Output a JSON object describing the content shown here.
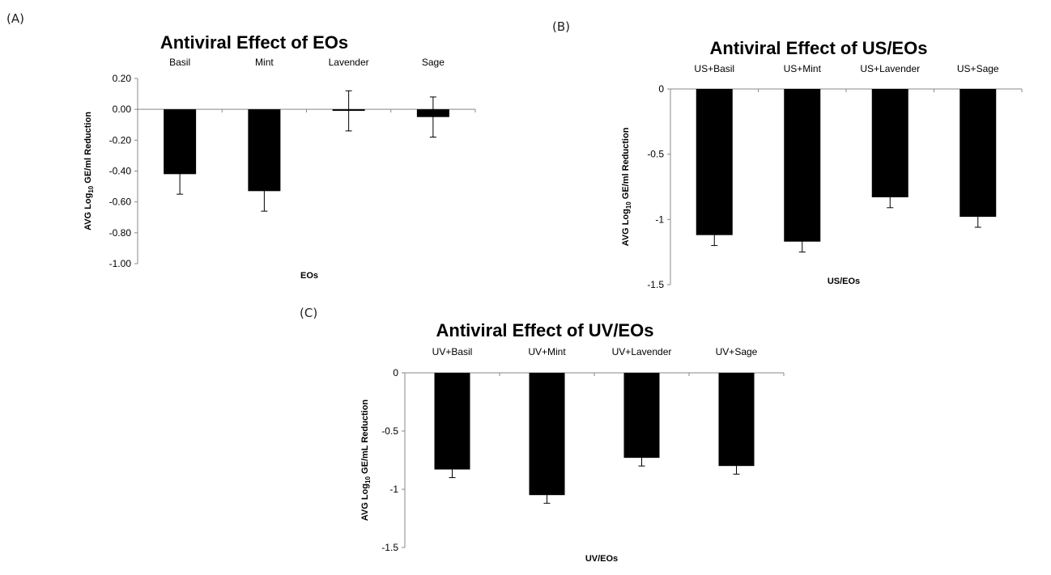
{
  "panels": [
    {
      "label": "(A)"
    },
    {
      "label": "(B)"
    },
    {
      "label": "(C)"
    }
  ],
  "chart_data": [
    {
      "type": "bar",
      "title": "Antiviral Effect of EOs",
      "categories": [
        "Basil",
        "Mint",
        "Lavender",
        "Sage"
      ],
      "values": [
        -0.42,
        -0.53,
        -0.01,
        -0.05
      ],
      "error": [
        0.13,
        0.13,
        0.13,
        0.13
      ],
      "xlabel": "EOs",
      "ylabel": "AVG Log10 GE/ml Reduction",
      "ylim": [
        -1.0,
        0.2
      ],
      "yticks": [
        "0.20",
        "0.00",
        "-0.20",
        "-0.40",
        "-0.60",
        "-0.80",
        "-1.00"
      ],
      "bar_color": "#000000",
      "grid": false
    },
    {
      "type": "bar",
      "title": "Antiviral Effect of US/EOs",
      "categories": [
        "US+Basil",
        "US+Mint",
        "US+Lavender",
        "US+Sage"
      ],
      "values": [
        -1.12,
        -1.17,
        -0.83,
        -0.98
      ],
      "error": [
        0.08,
        0.08,
        0.08,
        0.08
      ],
      "xlabel": "US/EOs",
      "ylabel": "AVG Log10 GE/ml Reduction",
      "ylim": [
        -1.5,
        0
      ],
      "yticks": [
        "0",
        "-0.5",
        "-1",
        "-1.5"
      ],
      "bar_color": "#000000",
      "grid": false
    },
    {
      "type": "bar",
      "title": "Antiviral Effect of UV/EOs",
      "categories": [
        "UV+Basil",
        "UV+Mint",
        "UV+Lavender",
        "UV+Sage"
      ],
      "values": [
        -0.83,
        -1.05,
        -0.73,
        -0.8
      ],
      "error": [
        0.07,
        0.07,
        0.07,
        0.07
      ],
      "xlabel": "UV/EOs",
      "ylabel": "AVG Log10 GE/mL Reduction",
      "ylim": [
        -1.5,
        0
      ],
      "yticks": [
        "0",
        "-0.5",
        "-1",
        "-1.5"
      ],
      "bar_color": "#000000",
      "grid": false
    }
  ]
}
